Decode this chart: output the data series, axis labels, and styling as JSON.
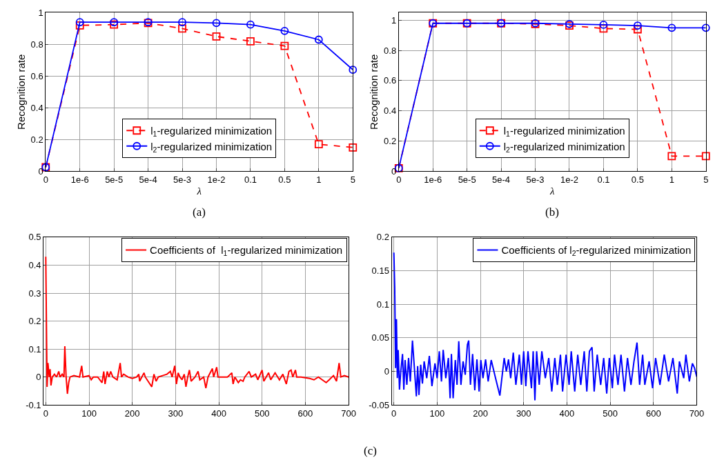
{
  "chart_data": [
    {
      "type": "line",
      "xlabel": "λ",
      "ylabel": "Recognition rate",
      "categories": [
        "0",
        "1e-6",
        "5e-5",
        "5e-4",
        "5e-3",
        "1e-2",
        "0.1",
        "0.5",
        "1",
        "5"
      ],
      "ylim": [
        0,
        1
      ],
      "yticks": [
        0,
        0.2,
        0.4,
        0.6,
        0.8,
        1
      ],
      "grid": true,
      "legend": "bottom",
      "annotations": [
        "(a)"
      ],
      "series": [
        {
          "name": "l$_{1}$-regularized minimization",
          "color": "#ff0000",
          "marker": "square",
          "line_style": "dashed",
          "values": [
            0.025,
            0.92,
            0.925,
            0.935,
            0.9,
            0.85,
            0.82,
            0.79,
            0.17,
            0.15
          ]
        },
        {
          "name": "l$_{2}$-regularized minimization",
          "color": "#0000ff",
          "marker": "circle",
          "line_style": "solid",
          "values": [
            0.025,
            0.94,
            0.94,
            0.94,
            0.94,
            0.935,
            0.925,
            0.885,
            0.83,
            0.64
          ]
        }
      ]
    },
    {
      "type": "line",
      "xlabel": "λ",
      "ylabel": "Recognition rate",
      "categories": [
        "0",
        "1e-6",
        "5e-5",
        "5e-4",
        "5e-3",
        "1e-2",
        "0.1",
        "0.5",
        "1",
        "5"
      ],
      "ylim": [
        0,
        1.05
      ],
      "yticks": [
        0,
        0.2,
        0.4,
        0.6,
        0.8,
        1
      ],
      "grid": true,
      "legend": "bottom",
      "annotations": [
        "(b)"
      ],
      "series": [
        {
          "name": "l$_{1}$-regularized minimization",
          "color": "#ff0000",
          "marker": "square",
          "line_style": "dashed",
          "values": [
            0.02,
            0.98,
            0.98,
            0.98,
            0.975,
            0.965,
            0.945,
            0.94,
            0.1,
            0.1
          ]
        },
        {
          "name": "l$_{2}$-regularized minimization",
          "color": "#0000ff",
          "marker": "circle",
          "line_style": "solid",
          "values": [
            0.02,
            0.98,
            0.98,
            0.98,
            0.98,
            0.975,
            0.97,
            0.965,
            0.95,
            0.95
          ]
        }
      ]
    },
    {
      "type": "line",
      "xlim": [
        -5,
        700
      ],
      "xticks": [
        0,
        100,
        200,
        300,
        400,
        500,
        600,
        700
      ],
      "ylim": [
        -0.1,
        0.5
      ],
      "yticks": [
        -0.1,
        0,
        0.1,
        0.2,
        0.3,
        0.4,
        0.5
      ],
      "grid": true,
      "legend": "top right",
      "series": [
        {
          "name": "Coefficients of  l$_{1}$-regularized minimization",
          "color": "#ff0000",
          "marker": "none",
          "line_style": "solid",
          "x": [
            0,
            3,
            5,
            8,
            10,
            12,
            15,
            20,
            25,
            30,
            33,
            38,
            42,
            44,
            47,
            50,
            53,
            56,
            65,
            78,
            83,
            86,
            100,
            105,
            110,
            120,
            130,
            134,
            137,
            142,
            146,
            150,
            155,
            165,
            172,
            175,
            180,
            190,
            200,
            210,
            215,
            217,
            227,
            230,
            245,
            250,
            255,
            260,
            270,
            280,
            288,
            292,
            298,
            302,
            306,
            310,
            315,
            320,
            324,
            328,
            332,
            336,
            345,
            352,
            356,
            365,
            370,
            375,
            385,
            388,
            395,
            398,
            420,
            430,
            433,
            437,
            445,
            450,
            456,
            460,
            470,
            475,
            485,
            490,
            500,
            504,
            515,
            520,
            530,
            540,
            548,
            556,
            562,
            567,
            571,
            577,
            580,
            590,
            610,
            620,
            630,
            648,
            655,
            665,
            672,
            678,
            682,
            690,
            700
          ],
          "values": [
            0.43,
            -0.035,
            0.05,
            0.0,
            0.028,
            -0.03,
            0.0,
            0.01,
            0.0,
            0.02,
            0.0,
            0.01,
            0.0,
            0.11,
            0.0,
            -0.06,
            -0.02,
            0.0,
            0.005,
            0.0,
            0.04,
            0.0,
            0.005,
            -0.01,
            0.0,
            0.0,
            -0.02,
            0.02,
            -0.025,
            0.02,
            0.0,
            0.02,
            0.0,
            -0.01,
            0.05,
            0.0,
            0.01,
            0.0,
            -0.005,
            0.0,
            0.01,
            -0.015,
            0.015,
            0.0,
            -0.035,
            0.01,
            -0.015,
            0.0,
            0.005,
            0.01,
            0.02,
            0.0,
            0.04,
            -0.025,
            0.015,
            0.0,
            -0.01,
            0.01,
            -0.035,
            0.0,
            0.025,
            -0.015,
            0.0,
            0.02,
            -0.01,
            0.0,
            -0.04,
            0.0,
            0.03,
            0.0,
            0.035,
            0.0,
            0.0,
            0.015,
            -0.025,
            0.0,
            -0.02,
            -0.01,
            -0.015,
            0.0,
            0.02,
            0.0,
            0.01,
            -0.01,
            0.025,
            -0.015,
            0.015,
            -0.01,
            0.015,
            -0.01,
            0.01,
            -0.025,
            0.02,
            0.025,
            0.0,
            0.025,
            0.0,
            0.0,
            -0.005,
            -0.01,
            0.0,
            -0.02,
            -0.01,
            0.005,
            -0.015,
            0.05,
            0.0,
            0.005,
            0.0
          ]
        }
      ]
    },
    {
      "type": "line",
      "xlim": [
        -5,
        700
      ],
      "xticks": [
        0,
        100,
        200,
        300,
        400,
        500,
        600,
        700
      ],
      "ylim": [
        -0.05,
        0.2
      ],
      "yticks": [
        -0.05,
        0,
        0.05,
        0.1,
        0.15,
        0.2
      ],
      "grid": true,
      "legend": "top right",
      "annotations": [
        "(c)"
      ],
      "series": [
        {
          "name": "Coefficients of l$_{2}$-regularized minimization",
          "color": "#0000ff",
          "marker": "none",
          "line_style": "solid",
          "x": [
            0,
            2,
            4,
            6,
            8,
            10,
            13,
            16,
            20,
            23,
            26,
            30,
            34,
            38,
            43,
            48,
            52,
            55,
            58,
            62,
            66,
            70,
            76,
            82,
            88,
            95,
            100,
            105,
            110,
            114,
            120,
            126,
            130,
            133,
            137,
            142,
            146,
            150,
            155,
            160,
            165,
            170,
            173,
            177,
            182,
            187,
            192,
            197,
            201,
            206,
            212,
            218,
            225,
            235,
            245,
            255,
            260,
            265,
            270,
            276,
            282,
            290,
            295,
            300,
            305,
            310,
            318,
            322,
            326,
            330,
            336,
            342,
            350,
            358,
            365,
            372,
            378,
            385,
            390,
            398,
            405,
            410,
            418,
            425,
            432,
            440,
            446,
            452,
            458,
            463,
            470,
            478,
            485,
            492,
            498,
            505,
            510,
            518,
            525,
            533,
            540,
            548,
            555,
            562,
            568,
            575,
            580,
            590,
            598,
            605,
            615,
            625,
            635,
            645,
            655,
            660,
            670,
            675,
            683,
            690,
            695,
            700
          ],
          "values": [
            0.177,
            0.125,
            0.005,
            0.078,
            -0.01,
            0.032,
            -0.027,
            0.0,
            0.026,
            -0.027,
            0.017,
            -0.02,
            0.02,
            -0.015,
            0.046,
            0.0,
            -0.037,
            0.008,
            -0.035,
            0.01,
            -0.018,
            0.015,
            -0.01,
            0.023,
            -0.022,
            0.012,
            -0.01,
            0.03,
            -0.015,
            0.032,
            -0.01,
            0.02,
            -0.04,
            0.026,
            -0.04,
            0.017,
            -0.02,
            0.045,
            -0.02,
            0.015,
            -0.005,
            0.04,
            0.046,
            -0.02,
            0.026,
            -0.028,
            0.018,
            -0.03,
            0.017,
            -0.01,
            0.018,
            -0.015,
            0.017,
            -0.01,
            -0.036,
            0.02,
            0.0,
            0.018,
            -0.01,
            0.028,
            -0.02,
            0.025,
            -0.02,
            0.03,
            -0.022,
            0.03,
            -0.025,
            0.03,
            -0.043,
            0.03,
            -0.02,
            0.03,
            -0.01,
            0.02,
            -0.03,
            0.02,
            -0.02,
            0.025,
            -0.03,
            0.025,
            -0.02,
            0.03,
            -0.03,
            0.025,
            -0.02,
            0.03,
            -0.03,
            0.03,
            0.036,
            -0.03,
            0.025,
            -0.02,
            0.02,
            -0.033,
            0.02,
            -0.025,
            0.025,
            -0.02,
            0.025,
            -0.03,
            0.02,
            -0.02,
            0.015,
            0.043,
            -0.02,
            0.025,
            -0.02,
            0.015,
            -0.025,
            0.02,
            -0.02,
            0.025,
            -0.015,
            0.02,
            -0.033,
            0.015,
            -0.01,
            0.025,
            -0.015,
            0.012,
            0.005,
            -0.008
          ]
        }
      ]
    }
  ]
}
